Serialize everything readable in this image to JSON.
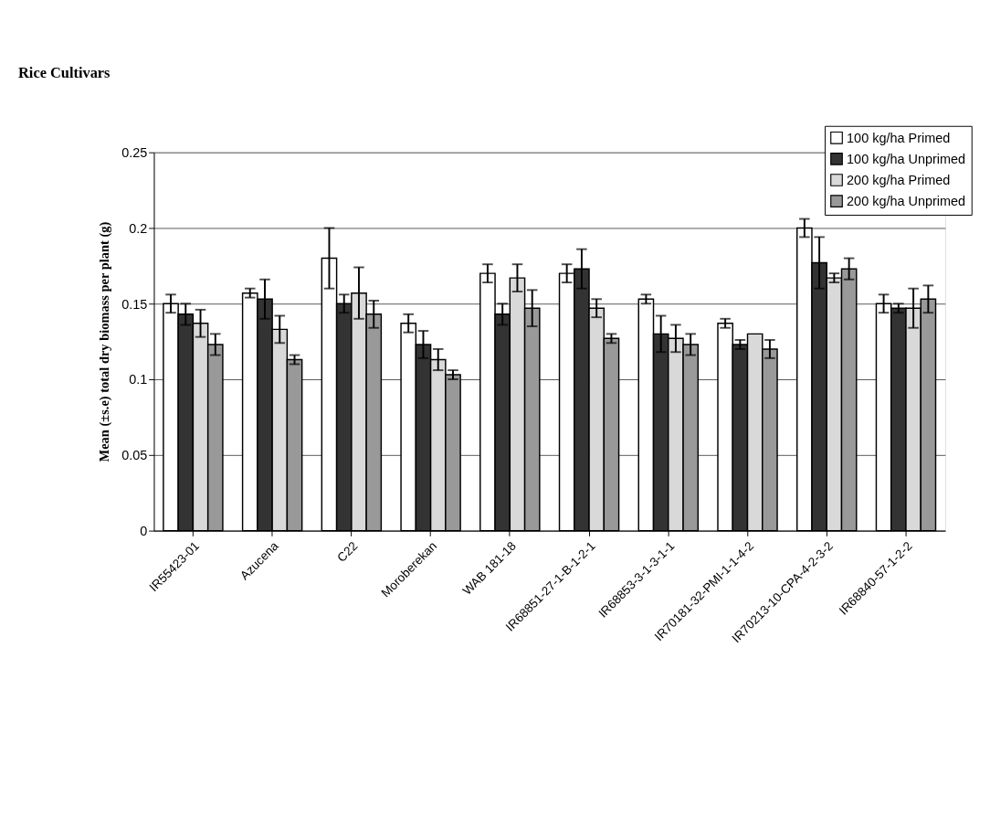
{
  "chart_data": {
    "type": "bar",
    "title": "Rice Cultivars",
    "ylabel": "Mean (±s.e) total dry biomass per plant (g)",
    "categories": [
      "IR55423-01",
      "Azucena",
      "C22",
      "Moroberekan",
      "WAB 181-18",
      "IR68851-27-1-B-1-2-1",
      "IR68853-3-1-3-1-1",
      "IR70181-32-PMI-1-1-4-2",
      "IR70213-10-CPA-4-2-3-2",
      "IR68840-57-1-2-2"
    ],
    "series": [
      {
        "name": "100 kg/ha Primed",
        "color": "#ffffff",
        "values": [
          0.15,
          0.157,
          0.18,
          0.137,
          0.17,
          0.17,
          0.153,
          0.137,
          0.2,
          0.15
        ],
        "errors": [
          0.006,
          0.003,
          0.02,
          0.006,
          0.006,
          0.006,
          0.003,
          0.003,
          0.006,
          0.006
        ]
      },
      {
        "name": "100 kg/ha Unprimed",
        "color": "#333333",
        "values": [
          0.143,
          0.153,
          0.15,
          0.123,
          0.143,
          0.173,
          0.13,
          0.123,
          0.177,
          0.147
        ],
        "errors": [
          0.007,
          0.013,
          0.006,
          0.009,
          0.007,
          0.013,
          0.012,
          0.003,
          0.017,
          0.003
        ]
      },
      {
        "name": "200 kg/ha Primed",
        "color": "#d9d9d9",
        "values": [
          0.137,
          0.133,
          0.157,
          0.113,
          0.167,
          0.147,
          0.127,
          0.13,
          0.167,
          0.147
        ],
        "errors": [
          0.009,
          0.009,
          0.017,
          0.007,
          0.009,
          0.006,
          0.009,
          null,
          0.003,
          0.013
        ]
      },
      {
        "name": "200 kg/ha Unprimed",
        "color": "#999999",
        "values": [
          0.123,
          0.113,
          0.143,
          0.103,
          0.147,
          0.127,
          0.123,
          0.12,
          0.173,
          0.153
        ],
        "errors": [
          0.007,
          0.003,
          0.009,
          0.003,
          0.012,
          0.003,
          0.007,
          0.006,
          0.007,
          0.009
        ]
      }
    ],
    "ylim": [
      0,
      0.25
    ],
    "yticks": [
      0,
      0.05,
      0.1,
      0.15,
      0.2,
      0.25
    ],
    "grid": "y",
    "legend": "top right"
  }
}
